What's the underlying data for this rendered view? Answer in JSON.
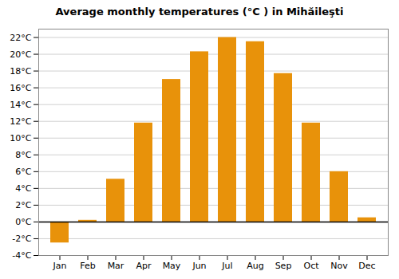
{
  "chart_data": {
    "type": "bar",
    "title": "Average monthly temperatures (°C ) in Mihăileşti",
    "categories": [
      "Jan",
      "Feb",
      "Mar",
      "Apr",
      "May",
      "Jun",
      "Jul",
      "Aug",
      "Sep",
      "Oct",
      "Nov",
      "Dec"
    ],
    "values": [
      -2.5,
      0.2,
      5.1,
      11.8,
      17.0,
      20.3,
      22.0,
      21.5,
      17.7,
      11.8,
      6.0,
      0.5
    ],
    "color": "#E8920A",
    "ylim": [
      -4,
      23
    ],
    "yticks": [
      {
        "value": -4,
        "label": "-4°C"
      },
      {
        "value": -2,
        "label": "-2°C"
      },
      {
        "value": 0,
        "label": "0°C"
      },
      {
        "value": 2,
        "label": "2°C"
      },
      {
        "value": 4,
        "label": "4°C"
      },
      {
        "value": 6,
        "label": "6°C"
      },
      {
        "value": 8,
        "label": "8°C"
      },
      {
        "value": 10,
        "label": "10°C"
      },
      {
        "value": 12,
        "label": "12°C"
      },
      {
        "value": 14,
        "label": "14°C"
      },
      {
        "value": 16,
        "label": "16°C"
      },
      {
        "value": 18,
        "label": "18°C"
      },
      {
        "value": 20,
        "label": "20°C"
      },
      {
        "value": 22,
        "label": "22°C"
      }
    ],
    "grid": true
  }
}
